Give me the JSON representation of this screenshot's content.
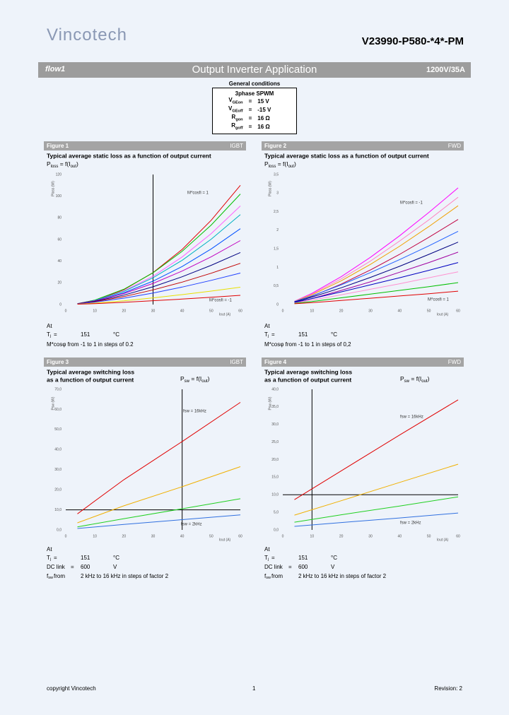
{
  "header": {
    "logo": "Vincotech",
    "part_number": "V23990-P580-*4*-PM",
    "family": "flow1",
    "section": "Output Inverter Application",
    "rating": "1200V/35A"
  },
  "general_conditions": {
    "title": "General conditions",
    "mode": "3phase SPWM",
    "rows": [
      {
        "symbol": "V",
        "sub": "GEon",
        "eq": "=",
        "value": "15 V"
      },
      {
        "symbol": "V",
        "sub": "GEoff",
        "eq": "=",
        "value": "-15 V"
      },
      {
        "symbol": "R",
        "sub": "gon",
        "eq": "=",
        "value": "16 Ω"
      },
      {
        "symbol": "R",
        "sub": "goff",
        "eq": "=",
        "value": "16 Ω"
      }
    ]
  },
  "chart_data": [
    {
      "type": "line",
      "figure": "Figure 1",
      "device": "IGBT",
      "title": [
        "Typical average static loss as a function of output current"
      ],
      "formula": {
        "p": "P",
        "psub": "loss",
        "mid": " = f(I",
        "isub": "out",
        "end": ")"
      },
      "ylabel": "Ploss (W)",
      "xlabel": "Iout (A)",
      "x": [
        4,
        10,
        20,
        30,
        40,
        50,
        60
      ],
      "series": [
        {
          "color": "#e00000",
          "values": [
            0.7,
            3.6,
            13.6,
            29.5,
            50.9,
            77.8,
            110
          ]
        },
        {
          "color": "#00c000",
          "values": [
            0.8,
            4.1,
            14.1,
            29.3,
            49.2,
            73.4,
            102
          ]
        },
        {
          "color": "#ff60ff",
          "values": [
            0.7,
            3.6,
            12.6,
            26.1,
            43.9,
            65.5,
            91
          ]
        },
        {
          "color": "#00b0c0",
          "values": [
            0.7,
            3.7,
            12.1,
            24.7,
            40.8,
            60.3,
            83
          ]
        },
        {
          "color": "#0050ff",
          "values": [
            0.7,
            3.4,
            10.8,
            21.6,
            35.1,
            51.3,
            70
          ]
        },
        {
          "color": "#c000c0",
          "values": [
            0.8,
            3.4,
            10.1,
            19.5,
            30.9,
            44.1,
            59
          ]
        },
        {
          "color": "#000080",
          "values": [
            0.7,
            3.0,
            8.7,
            16.4,
            25.6,
            36.2,
            48
          ]
        },
        {
          "color": "#c00000",
          "values": [
            0.6,
            2.6,
            7.3,
            13.5,
            20.7,
            28.9,
            38
          ]
        },
        {
          "color": "#2040ff",
          "values": [
            0.6,
            2.2,
            5.9,
            10.6,
            16.1,
            22.3,
            29
          ]
        },
        {
          "color": "#e8e000",
          "values": [
            0.4,
            1.3,
            3.4,
            6.1,
            9.1,
            12.4,
            16
          ]
        },
        {
          "color": "#e00000",
          "values": [
            0.3,
            0.8,
            2.0,
            3.5,
            5.0,
            6.7,
            8.5
          ]
        }
      ],
      "xlim": [
        0,
        60
      ],
      "ylim": [
        0,
        120
      ],
      "xticks": [
        0,
        10,
        20,
        30,
        40,
        50,
        60
      ],
      "yticks": [
        0,
        20,
        40,
        60,
        80,
        100,
        120
      ],
      "vlines": [
        30
      ],
      "hlines": [],
      "annotations": [
        "M*cosfi = 1",
        "M*cosfi = -1"
      ],
      "conditions": {
        "at": "At",
        "rows": [
          {
            "label": "T",
            "sub": "j",
            "eq": "=",
            "value": "151",
            "unit": "°C"
          }
        ],
        "text": "M*cosφ from -1 to 1 in steps of 0.2"
      }
    },
    {
      "type": "line",
      "figure": "Figure 2",
      "device": "FWD",
      "title": [
        "Typical average static loss as a function of output current"
      ],
      "formula": {
        "p": "P",
        "psub": "loss",
        "mid": " = f(I",
        "isub": "out",
        "end": ")"
      },
      "ylabel": "Ploss (W)",
      "xlabel": "Iout (A)",
      "x": [
        4,
        10,
        20,
        30,
        40,
        50,
        60
      ],
      "series": [
        {
          "color": "#ff00ff",
          "values": [
            0.09,
            0.3,
            0.75,
            1.27,
            1.85,
            2.48,
            3.14
          ]
        },
        {
          "color": "#ff80c0",
          "values": [
            0.09,
            0.28,
            0.69,
            1.17,
            1.71,
            2.28,
            2.89
          ]
        },
        {
          "color": "#f0a000",
          "values": [
            0.08,
            0.26,
            0.64,
            1.08,
            1.57,
            2.1,
            2.66
          ]
        },
        {
          "color": "#c00040",
          "values": [
            0.07,
            0.22,
            0.55,
            0.93,
            1.35,
            1.81,
            2.29
          ]
        },
        {
          "color": "#2060ff",
          "values": [
            0.08,
            0.23,
            0.53,
            0.86,
            1.21,
            1.58,
            1.97
          ]
        },
        {
          "color": "#000080",
          "values": [
            0.07,
            0.2,
            0.45,
            0.73,
            1.03,
            1.35,
            1.68
          ]
        },
        {
          "color": "#a000a0",
          "values": [
            0.05,
            0.16,
            0.38,
            0.61,
            0.87,
            1.13,
            1.41
          ]
        },
        {
          "color": "#0000c0",
          "values": [
            0.06,
            0.16,
            0.34,
            0.53,
            0.72,
            0.92,
            1.13
          ]
        },
        {
          "color": "#ff90d0",
          "values": [
            0.04,
            0.12,
            0.26,
            0.41,
            0.56,
            0.72,
            0.88
          ]
        },
        {
          "color": "#00c000",
          "values": [
            0.03,
            0.08,
            0.18,
            0.28,
            0.38,
            0.48,
            0.59
          ]
        },
        {
          "color": "#e00000",
          "values": [
            0.02,
            0.05,
            0.11,
            0.17,
            0.23,
            0.29,
            0.36
          ]
        }
      ],
      "xlim": [
        0,
        60
      ],
      "ylim": [
        0,
        3.5
      ],
      "xticks": [
        0,
        10,
        20,
        30,
        40,
        50,
        60
      ],
      "yticks": [
        0,
        {
          "value": 0.5,
          "label": "0,5"
        },
        1,
        {
          "value": 1.5,
          "label": "1,5"
        },
        2,
        {
          "value": 2.5,
          "label": "2,5"
        },
        3,
        {
          "value": 3.5,
          "label": "3,5"
        }
      ],
      "vlines": [],
      "hlines": [],
      "annotations": [
        "M*cosfi = -1",
        "M*cosfi = 1"
      ],
      "conditions": {
        "at": "At",
        "rows": [
          {
            "label": "T",
            "sub": "j",
            "eq": "=",
            "value": "151",
            "unit": "°C"
          }
        ],
        "text": "M*cosφ from -1 to 1 in steps of 0,2"
      }
    },
    {
      "type": "line",
      "figure": "Figure 3",
      "device": "IGBT",
      "title": [
        "Typical average switching loss",
        "as a function of output current"
      ],
      "formula": {
        "p": "P",
        "psub": "sw",
        "mid": " = f(I",
        "isub": "out",
        "end": ")"
      },
      "ylabel": "Psw (W)",
      "xlabel": "Iout (A)",
      "x": [
        4,
        20,
        40,
        60
      ],
      "series": [
        {
          "color": "#e00000",
          "values": [
            8,
            25,
            44,
            63.5
          ]
        },
        {
          "color": "#f0b000",
          "values": [
            3.5,
            12,
            21.5,
            31.5
          ]
        },
        {
          "color": "#20d020",
          "values": [
            1.5,
            5.6,
            10.5,
            15.5
          ]
        },
        {
          "color": "#3070e0",
          "values": [
            0.7,
            2.7,
            5.1,
            7.5
          ]
        }
      ],
      "xlim": [
        0,
        60
      ],
      "ylim": [
        0,
        70
      ],
      "xticks": [
        0,
        10,
        20,
        30,
        40,
        50,
        60
      ],
      "yticks": [
        {
          "value": 0,
          "label": "0,0"
        },
        {
          "value": 10,
          "label": "10,0"
        },
        {
          "value": 20,
          "label": "20,0"
        },
        {
          "value": 30,
          "label": "30,0"
        },
        {
          "value": 40,
          "label": "40,0"
        },
        {
          "value": 50,
          "label": "50,0"
        },
        {
          "value": 60,
          "label": "60,0"
        },
        {
          "value": 70,
          "label": "70,0"
        }
      ],
      "vlines": [
        40
      ],
      "hlines": [
        10
      ],
      "annotations": [
        "fsw = 16kHz",
        "fsw = 2kHz"
      ],
      "conditions": {
        "at": "At",
        "rows": [
          {
            "label": "T",
            "sub": "j",
            "eq": "=",
            "value": "151",
            "unit": "°C"
          },
          {
            "label": "DC link",
            "eq": "=",
            "value": "600",
            "unit": "V"
          },
          {
            "label": "f",
            "sub": "sw",
            "eq": "from",
            "value": "2 kHz to 16 kHz in steps of factor 2"
          }
        ]
      }
    },
    {
      "type": "line",
      "figure": "Figure 4",
      "device": "FWD",
      "title": [
        "Typical average switching loss",
        "as a function of output current"
      ],
      "formula": {
        "p": "P",
        "psub": "sw",
        "mid": " = f(I",
        "isub": "out",
        "end": ")"
      },
      "ylabel": "Psw (W)",
      "xlabel": "Iout (A)",
      "x": [
        4,
        20,
        40,
        60
      ],
      "series": [
        {
          "color": "#e00000",
          "values": [
            8.6,
            16.8,
            27,
            37
          ]
        },
        {
          "color": "#f0b000",
          "values": [
            4.2,
            8.3,
            13.5,
            18.7
          ]
        },
        {
          "color": "#20d020",
          "values": [
            2.2,
            4.3,
            6.8,
            9.4
          ]
        },
        {
          "color": "#3070e0",
          "values": [
            1,
            2.1,
            3.4,
            4.8
          ]
        }
      ],
      "xlim": [
        0,
        60
      ],
      "ylim": [
        0,
        40
      ],
      "xticks": [
        0,
        10,
        20,
        30,
        40,
        50,
        60
      ],
      "yticks": [
        {
          "value": 0,
          "label": "0,0"
        },
        {
          "value": 5,
          "label": "5,0"
        },
        {
          "value": 10,
          "label": "10,0"
        },
        {
          "value": 15,
          "label": "15,0"
        },
        {
          "value": 20,
          "label": "20,0"
        },
        {
          "value": 25,
          "label": "25,0"
        },
        {
          "value": 30,
          "label": "30,0"
        },
        {
          "value": 35,
          "label": "35,0"
        },
        {
          "value": 40,
          "label": "40,0"
        }
      ],
      "vlines": [
        10
      ],
      "hlines": [
        10
      ],
      "annotations": [
        "fsw = 16kHz",
        "fsw = 2kHz"
      ],
      "conditions": {
        "at": "At",
        "rows": [
          {
            "label": "T",
            "sub": "j",
            "eq": "=",
            "value": "151",
            "unit": "°C"
          },
          {
            "label": "DC link",
            "eq": "=",
            "value": "600",
            "unit": "V"
          },
          {
            "label": "f",
            "sub": "sw",
            "eq": "from",
            "value": "2 kHz to 16 kHz in steps of factor 2"
          }
        ]
      }
    }
  ],
  "footer": {
    "copyright": "copyright Vincotech",
    "page": "1",
    "revision": "Revision: 2"
  }
}
